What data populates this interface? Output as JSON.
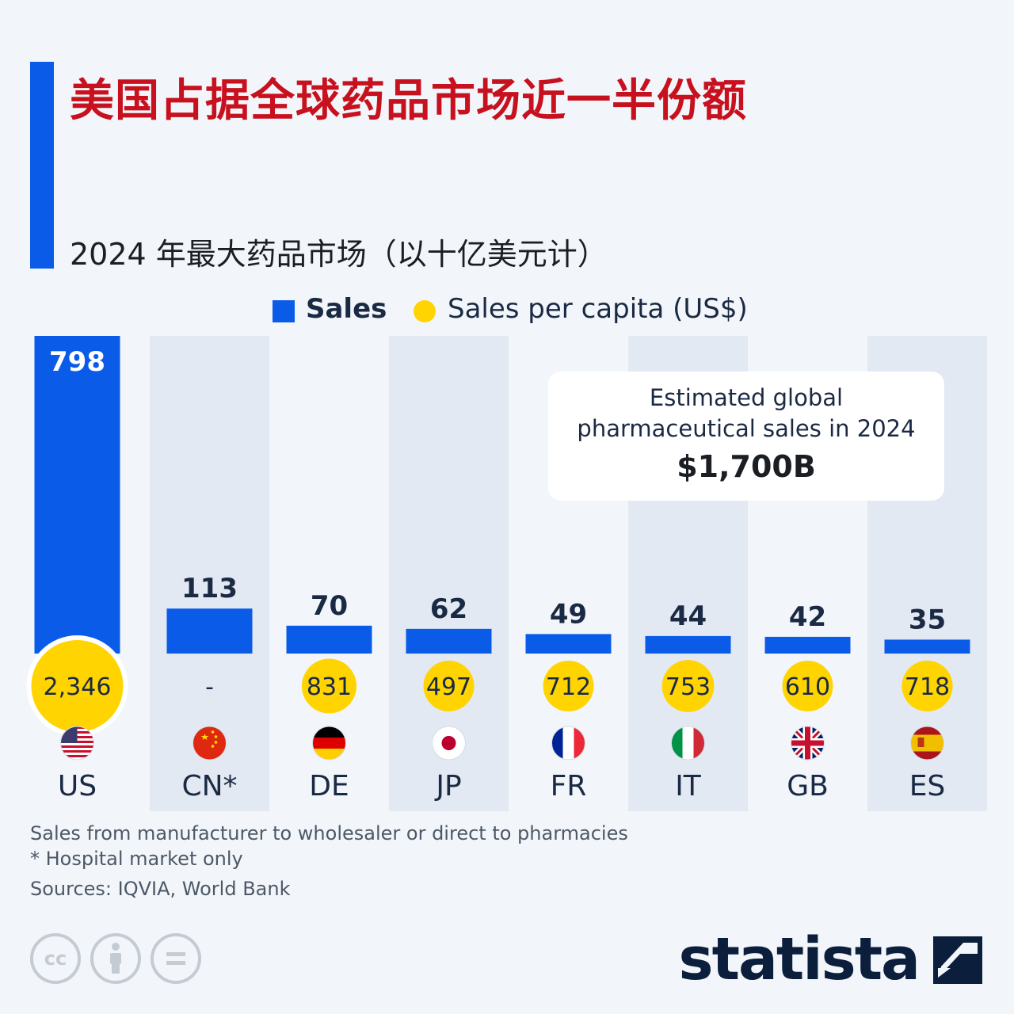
{
  "title": "美国占据全球药品市场近一半份额",
  "subtitle": "2024 年最大药品市场（以十亿美元计）",
  "legend": {
    "sales": "Sales",
    "per_capita": "Sales per capita (US$)"
  },
  "callout": {
    "text_line1": "Estimated global",
    "text_line2": "pharmaceutical sales in 2024",
    "value": "$1,700B"
  },
  "notes": [
    "Sales from manufacturer to wholesaler or direct to pharmacies",
    "* Hospital market only"
  ],
  "sources": "Sources: IQVIA, World Bank",
  "brand": "statista",
  "colors": {
    "accent": "#0a5ce8",
    "title": "#c8111e",
    "bar": "#0a5ce8",
    "dot": "#ffd400",
    "column_shade": "#e3e9f2",
    "background": "#f2f6fa"
  },
  "chart_data": {
    "type": "bar",
    "title": "2024 年最大药品市场（以十亿美元计）",
    "categories": [
      "US",
      "CN*",
      "DE",
      "JP",
      "FR",
      "IT",
      "GB",
      "ES"
    ],
    "flags": [
      "us-flag-icon",
      "cn-flag-icon",
      "de-flag-icon",
      "jp-flag-icon",
      "fr-flag-icon",
      "it-flag-icon",
      "gb-flag-icon",
      "es-flag-icon"
    ],
    "series": [
      {
        "name": "Sales",
        "values": [
          798,
          113,
          70,
          62,
          49,
          44,
          42,
          35
        ]
      },
      {
        "name": "Sales per capita (US$)",
        "values": [
          2346,
          null,
          831,
          497,
          712,
          753,
          610,
          718
        ],
        "labels": [
          "2,346",
          "-",
          "831",
          "497",
          "712",
          "753",
          "610",
          "718"
        ]
      }
    ],
    "grid": false,
    "legend_position": "top-center"
  }
}
